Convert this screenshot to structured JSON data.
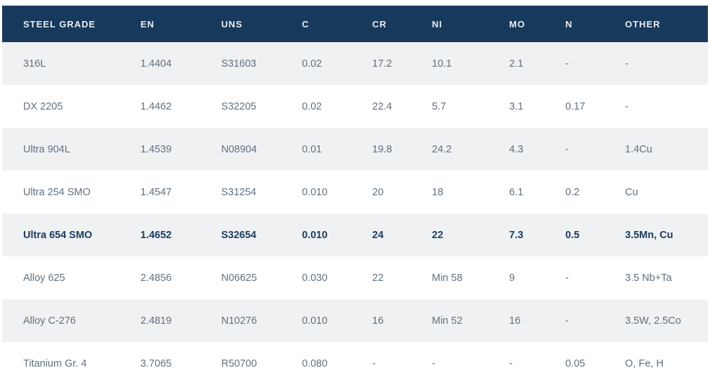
{
  "chart_data": {
    "type": "table",
    "title": "",
    "columns": [
      "STEEL GRADE",
      "EN",
      "UNS",
      "C",
      "CR",
      "NI",
      "MO",
      "N",
      "OTHER"
    ],
    "rows": [
      [
        "316L",
        "1.4404",
        "S31603",
        "0.02",
        "17.2",
        "10.1",
        "2.1",
        "-",
        "-"
      ],
      [
        "DX 2205",
        "1.4462",
        "S32205",
        "0.02",
        "22.4",
        "5.7",
        "3.1",
        "0.17",
        "-"
      ],
      [
        "Ultra 904L",
        "1.4539",
        "N08904",
        "0.01",
        "19.8",
        "24.2",
        "4.3",
        "-",
        "1.4Cu"
      ],
      [
        "Ultra 254 SMO",
        "1.4547",
        "S31254",
        "0.010",
        "20",
        "18",
        "6.1",
        "0.2",
        "Cu"
      ],
      [
        "Ultra 654 SMO",
        "1.4652",
        "S32654",
        "0.010",
        "24",
        "22",
        "7.3",
        "0.5",
        "3.5Mn, Cu"
      ],
      [
        "Alloy 625",
        "2.4856",
        "N06625",
        "0.030",
        "22",
        "Min 58",
        "9",
        "-",
        "3.5 Nb+Ta"
      ],
      [
        "Alloy C-276",
        "2.4819",
        "N10276",
        "0.010",
        "16",
        "Min 52",
        "16",
        "-",
        "3.5W, 2.5Co"
      ],
      [
        "Titanium Gr. 4",
        "3.7065",
        "R50700",
        "0.080",
        "-",
        "-",
        "-",
        "0.05",
        "O, Fe, H"
      ]
    ],
    "highlight_row_index": 4,
    "shaded_row_indexes": [
      0,
      2,
      4,
      6
    ],
    "legend_position": "none",
    "grid": false,
    "colors": {
      "header_background": "#17395C",
      "header_text": "#E9EDF2",
      "shaded_row_background": "#EFF1F3",
      "plain_row_background": "#FFFFFF",
      "body_text": "#61707F",
      "highlight_text": "#1C3B5F"
    }
  }
}
